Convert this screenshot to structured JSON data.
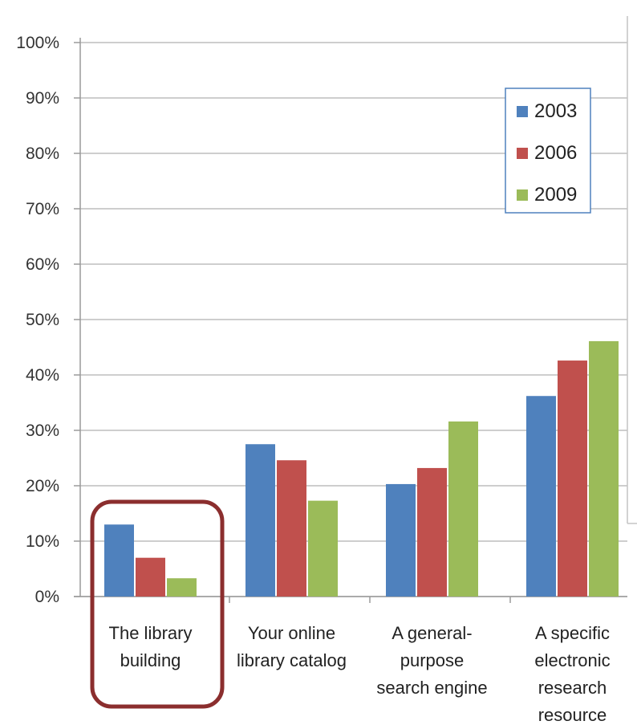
{
  "chart_data": {
    "type": "bar",
    "categories": [
      [
        "The library",
        "building"
      ],
      [
        "Your online",
        "library catalog"
      ],
      [
        "A general-",
        "purpose",
        "search engine"
      ],
      [
        "A specific",
        "electronic",
        "research",
        "resource"
      ]
    ],
    "series": [
      {
        "name": "2003",
        "color": "#4f81bd",
        "values": [
          13,
          27.5,
          20.3,
          36.2
        ]
      },
      {
        "name": "2006",
        "color": "#c0504d",
        "values": [
          7,
          24.6,
          23.2,
          42.6
        ]
      },
      {
        "name": "2009",
        "color": "#9bbb59",
        "values": [
          3.3,
          17.3,
          31.6,
          46.1
        ]
      }
    ],
    "ylim": [
      0,
      100
    ],
    "yticks": [
      "0%",
      "10%",
      "20%",
      "30%",
      "40%",
      "50%",
      "60%",
      "70%",
      "80%",
      "90%",
      "100%"
    ],
    "grid": true,
    "legend_position": "top-right",
    "highlight_category": 0,
    "highlight_color": "#8b2e2e"
  }
}
